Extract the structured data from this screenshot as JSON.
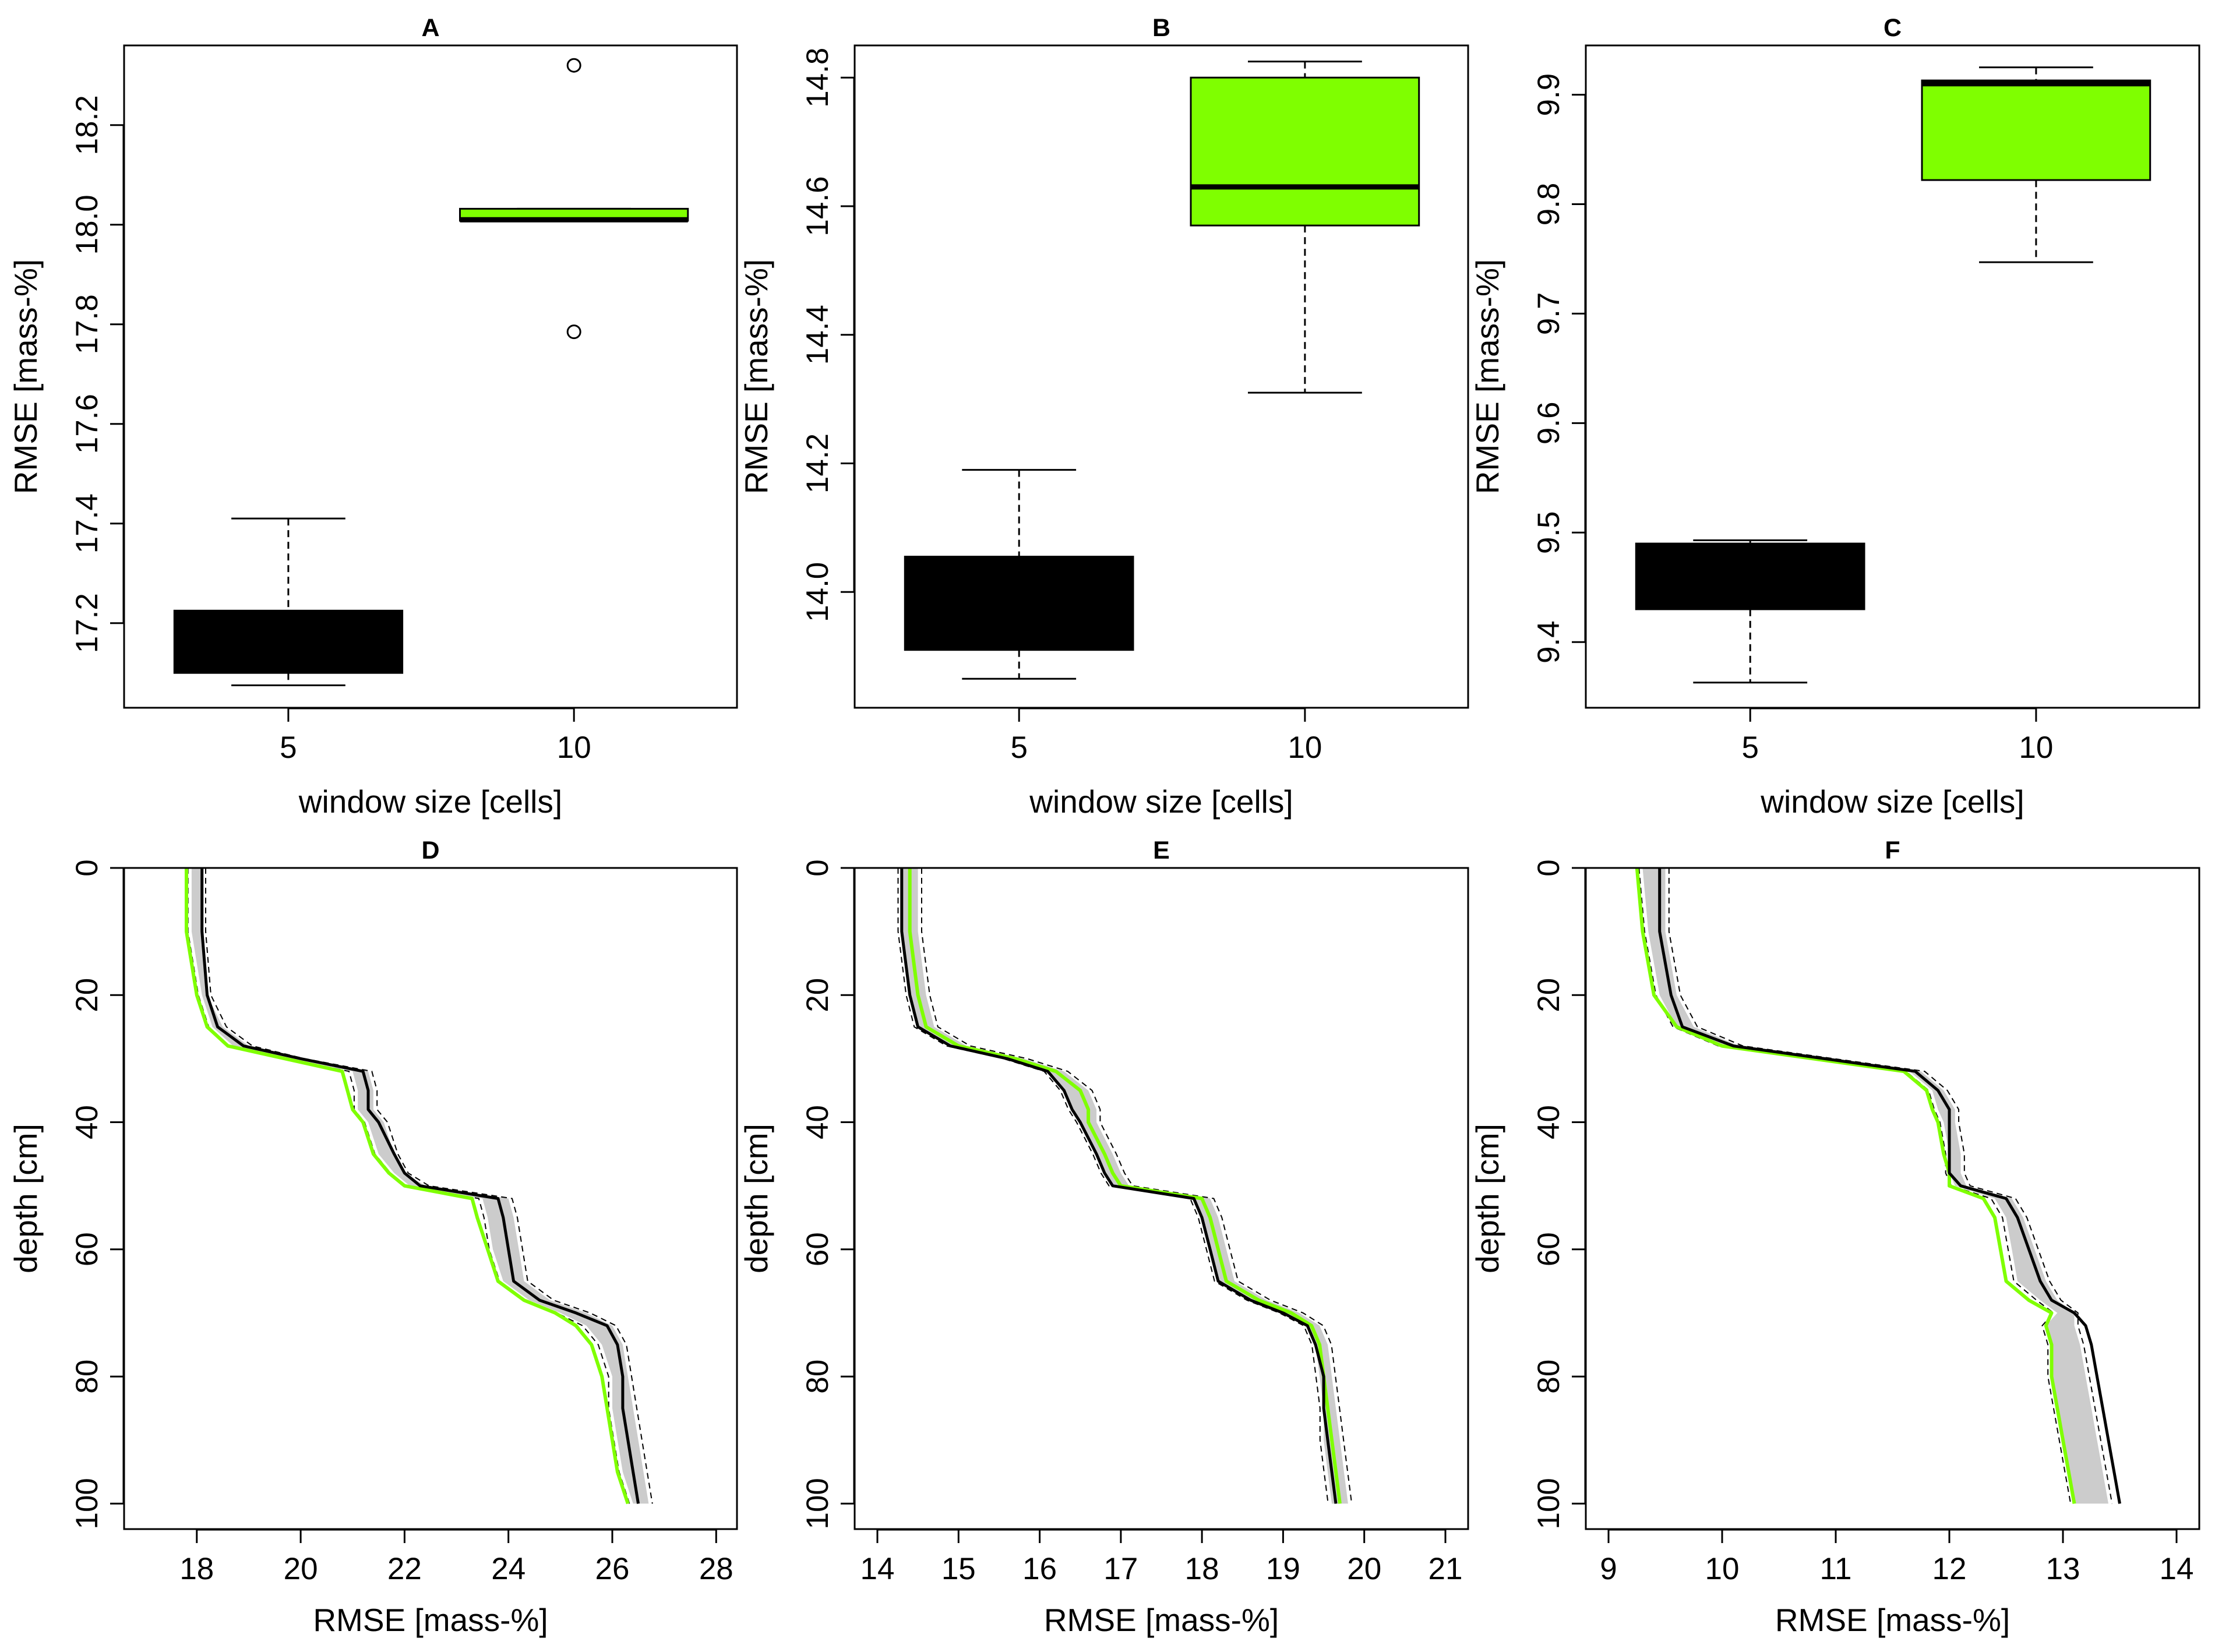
{
  "colors": {
    "green": "#7FFF00",
    "black": "#000000",
    "band": "#CCCCCC"
  },
  "chart_data": [
    {
      "panel": "A",
      "type": "box",
      "title": "A",
      "xlabel": "window size [cells]",
      "ylabel": "RMSE [mass-%]",
      "ylim": [
        17.03,
        18.36
      ],
      "yticks": [
        "17.2",
        "17.4",
        "17.6",
        "17.8",
        "18.0",
        "18.2"
      ],
      "categories": [
        "5",
        "10"
      ],
      "boxes": [
        {
          "color": "#000000",
          "median_color": "#000000",
          "min": 17.075,
          "q1": 17.1,
          "median": 17.165,
          "q3": 17.225,
          "max": 17.41,
          "outliers": []
        },
        {
          "color": "#7FFF00",
          "median_color": "#000000",
          "min": 18.008,
          "q1": 18.008,
          "median": 18.01,
          "q3": 18.032,
          "max": 18.032,
          "outliers": [
            18.32,
            17.785
          ]
        }
      ]
    },
    {
      "panel": "B",
      "type": "box",
      "title": "B",
      "xlabel": "window size [cells]",
      "ylabel": "RMSE [mass-%]",
      "ylim": [
        13.82,
        14.85
      ],
      "yticks": [
        "14.0",
        "14.2",
        "14.4",
        "14.6",
        "14.8"
      ],
      "categories": [
        "5",
        "10"
      ],
      "boxes": [
        {
          "color": "#000000",
          "median_color": "#000000",
          "min": 13.865,
          "q1": 13.91,
          "median": 13.98,
          "q3": 14.055,
          "max": 14.19,
          "outliers": []
        },
        {
          "color": "#7FFF00",
          "median_color": "#000000",
          "min": 14.31,
          "q1": 14.57,
          "median": 14.63,
          "q3": 14.8,
          "max": 14.825,
          "outliers": []
        }
      ]
    },
    {
      "panel": "C",
      "type": "box",
      "title": "C",
      "xlabel": "window size [cells]",
      "ylabel": "RMSE [mass-%]",
      "ylim": [
        9.34,
        9.945
      ],
      "yticks": [
        "9.4",
        "9.5",
        "9.6",
        "9.7",
        "9.8",
        "9.9"
      ],
      "categories": [
        "5",
        "10"
      ],
      "boxes": [
        {
          "color": "#000000",
          "median_color": "#000000",
          "min": 9.363,
          "q1": 9.43,
          "median": 9.462,
          "q3": 9.49,
          "max": 9.493,
          "outliers": []
        },
        {
          "color": "#7FFF00",
          "median_color": "#000000",
          "min": 9.747,
          "q1": 9.822,
          "median": 9.91,
          "q3": 9.913,
          "max": 9.925,
          "outliers": []
        }
      ]
    },
    {
      "panel": "D",
      "type": "line",
      "title": "D",
      "xlabel": "RMSE [mass-%]",
      "ylabel": "depth [cm]",
      "xlim": [
        16.6,
        28.4
      ],
      "ylim": [
        0,
        104
      ],
      "yreversed": true,
      "xticks": [
        "18",
        "20",
        "22",
        "24",
        "26",
        "28"
      ],
      "yticks": [
        "0",
        "20",
        "40",
        "60",
        "80",
        "100"
      ],
      "profiles": {
        "depth": [
          0,
          10,
          20,
          25,
          28,
          30,
          32,
          35,
          38,
          40,
          45,
          48,
          50,
          52,
          55,
          60,
          65,
          68,
          70,
          72,
          75,
          80,
          85,
          90,
          95,
          100
        ],
        "black_mean": [
          18.1,
          18.1,
          18.2,
          18.4,
          18.9,
          20.0,
          21.2,
          21.3,
          21.3,
          21.5,
          21.8,
          22.0,
          22.3,
          23.8,
          23.9,
          24.0,
          24.1,
          24.6,
          25.3,
          25.9,
          26.1,
          26.2,
          26.2,
          26.3,
          26.4,
          26.5
        ],
        "green_mean": [
          17.8,
          17.8,
          18.0,
          18.2,
          18.6,
          19.7,
          20.8,
          20.9,
          21.0,
          21.2,
          21.4,
          21.7,
          22.0,
          23.3,
          23.4,
          23.6,
          23.8,
          24.3,
          24.9,
          25.3,
          25.6,
          25.8,
          25.9,
          26.0,
          26.1,
          26.3
        ],
        "band_low": [
          17.9,
          17.9,
          18.1,
          18.3,
          18.7,
          19.8,
          21.0,
          21.1,
          21.1,
          21.3,
          21.5,
          21.8,
          22.1,
          23.5,
          23.6,
          23.7,
          23.9,
          24.4,
          25.0,
          25.5,
          25.8,
          26.0,
          26.0,
          26.1,
          26.2,
          26.4
        ],
        "band_high": [
          18.1,
          18.1,
          18.2,
          18.5,
          19.0,
          20.0,
          21.3,
          21.4,
          21.4,
          21.6,
          21.8,
          22.0,
          22.4,
          24.0,
          24.1,
          24.2,
          24.3,
          24.8,
          25.5,
          26.0,
          26.2,
          26.3,
          26.4,
          26.5,
          26.6,
          26.7
        ]
      }
    },
    {
      "panel": "E",
      "type": "line",
      "title": "E",
      "xlabel": "RMSE [mass-%]",
      "ylabel": "depth [cm]",
      "xlim": [
        13.72,
        21.28
      ],
      "ylim": [
        0,
        104
      ],
      "yreversed": true,
      "xticks": [
        "14",
        "15",
        "16",
        "17",
        "18",
        "19",
        "20",
        "21"
      ],
      "yticks": [
        "0",
        "20",
        "40",
        "60",
        "80",
        "100"
      ],
      "profiles": {
        "depth": [
          0,
          10,
          20,
          25,
          28,
          30,
          32,
          35,
          38,
          40,
          45,
          48,
          50,
          52,
          55,
          60,
          65,
          68,
          70,
          72,
          75,
          80,
          85,
          90,
          95,
          100
        ],
        "black_mean": [
          14.3,
          14.3,
          14.4,
          14.5,
          14.9,
          15.6,
          16.1,
          16.3,
          16.4,
          16.5,
          16.7,
          16.8,
          16.9,
          17.9,
          18.0,
          18.1,
          18.2,
          18.6,
          19.0,
          19.3,
          19.4,
          19.5,
          19.5,
          19.55,
          19.6,
          19.65
        ],
        "green_mean": [
          14.4,
          14.4,
          14.5,
          14.6,
          15.0,
          15.7,
          16.2,
          16.5,
          16.6,
          16.6,
          16.8,
          16.9,
          17.0,
          18.0,
          18.1,
          18.2,
          18.3,
          18.7,
          19.1,
          19.35,
          19.45,
          19.5,
          19.55,
          19.6,
          19.65,
          19.7
        ],
        "band_low": [
          14.3,
          14.3,
          14.4,
          14.5,
          14.9,
          15.6,
          16.1,
          16.3,
          16.4,
          16.5,
          16.7,
          16.8,
          16.9,
          17.9,
          18.0,
          18.1,
          18.2,
          18.6,
          19.0,
          19.3,
          19.4,
          19.45,
          19.5,
          19.5,
          19.55,
          19.6
        ],
        "band_high": [
          14.5,
          14.5,
          14.6,
          14.7,
          15.1,
          15.8,
          16.3,
          16.6,
          16.7,
          16.7,
          16.9,
          17.0,
          17.1,
          18.1,
          18.2,
          18.3,
          18.4,
          18.8,
          19.2,
          19.45,
          19.55,
          19.6,
          19.65,
          19.7,
          19.75,
          19.8
        ]
      }
    },
    {
      "panel": "F",
      "type": "line",
      "title": "F",
      "xlabel": "RMSE [mass-%]",
      "ylabel": "depth [cm]",
      "xlim": [
        8.8,
        14.2
      ],
      "ylim": [
        0,
        104
      ],
      "yreversed": true,
      "xticks": [
        "9",
        "10",
        "11",
        "12",
        "13",
        "14"
      ],
      "yticks": [
        "0",
        "20",
        "40",
        "60",
        "80",
        "100"
      ],
      "profiles": {
        "depth": [
          0,
          10,
          20,
          25,
          28,
          30,
          32,
          35,
          38,
          40,
          45,
          48,
          50,
          52,
          55,
          60,
          65,
          68,
          70,
          72,
          75,
          80,
          85,
          90,
          95,
          100
        ],
        "black_mean": [
          9.45,
          9.45,
          9.55,
          9.65,
          10.1,
          10.9,
          11.7,
          11.9,
          12.0,
          12.0,
          12.0,
          12.0,
          12.1,
          12.5,
          12.6,
          12.7,
          12.8,
          12.9,
          13.1,
          13.2,
          13.25,
          13.3,
          13.35,
          13.4,
          13.45,
          13.5
        ],
        "green_mean": [
          9.25,
          9.3,
          9.4,
          9.6,
          10.0,
          10.8,
          11.6,
          11.8,
          11.85,
          11.9,
          11.95,
          12.0,
          12.0,
          12.3,
          12.4,
          12.45,
          12.5,
          12.7,
          12.9,
          12.85,
          12.9,
          12.9,
          12.95,
          13.0,
          13.05,
          13.1
        ],
        "band_low": [
          9.3,
          9.35,
          9.45,
          9.6,
          10.0,
          10.85,
          11.65,
          11.85,
          11.9,
          11.95,
          12.0,
          12.0,
          12.05,
          12.4,
          12.5,
          12.55,
          12.6,
          12.8,
          12.95,
          12.85,
          12.9,
          12.9,
          12.95,
          13.0,
          13.05,
          13.1
        ],
        "band_high": [
          9.5,
          9.5,
          9.6,
          9.75,
          10.15,
          10.95,
          11.75,
          11.95,
          12.05,
          12.05,
          12.1,
          12.1,
          12.15,
          12.55,
          12.65,
          12.75,
          12.85,
          12.95,
          13.1,
          13.1,
          13.15,
          13.2,
          13.25,
          13.3,
          13.35,
          13.4
        ]
      }
    }
  ]
}
